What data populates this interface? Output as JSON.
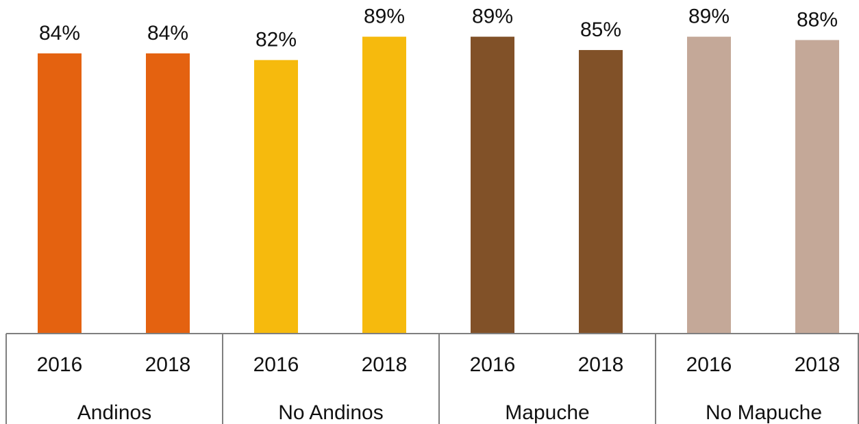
{
  "chart_data": {
    "type": "bar",
    "groups": [
      {
        "label": "Andinos",
        "color": "#E46210"
      },
      {
        "label": "No Andinos",
        "color": "#F6BA0D"
      },
      {
        "label": "Mapuche",
        "color": "#815128"
      },
      {
        "label": "No Mapuche",
        "color": "#C4A898"
      }
    ],
    "categories": [
      "2016",
      "2018"
    ],
    "values": [
      [
        84,
        84
      ],
      [
        82,
        89
      ],
      [
        89,
        85
      ],
      [
        89,
        88
      ]
    ],
    "value_labels": [
      [
        "84%",
        "84%"
      ],
      [
        "82%",
        "89%"
      ],
      [
        "89%",
        "85%"
      ],
      [
        "89%",
        "88%"
      ]
    ],
    "ylim": [
      0,
      100
    ],
    "grid": false,
    "legend": "none"
  }
}
